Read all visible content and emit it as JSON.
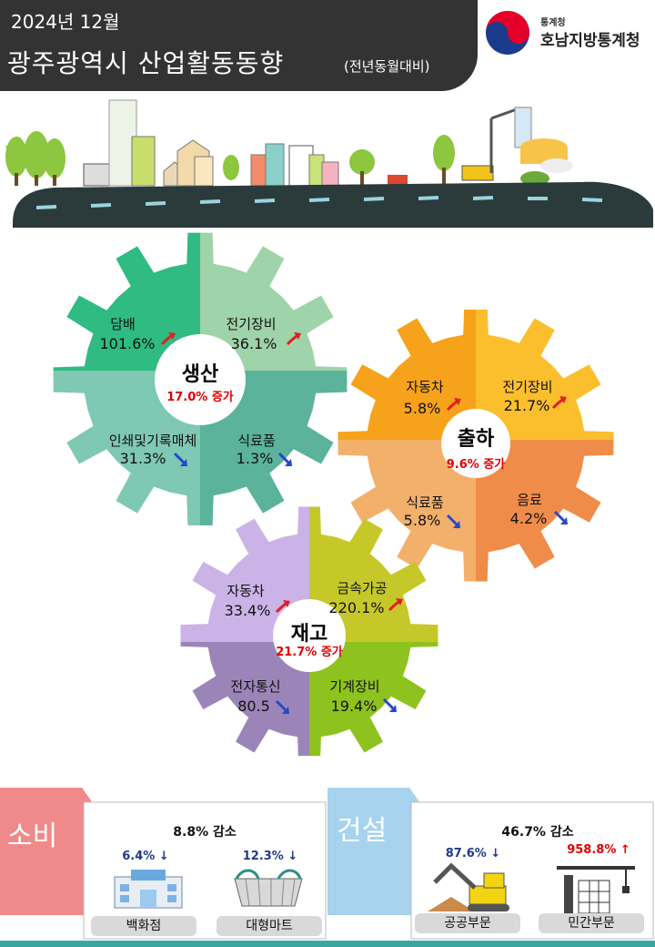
{
  "header": {
    "date": "2024년 12월",
    "title": "광주광역시 산업활동동향",
    "subtitle": "(전년동월대비)",
    "logo_small": "통계청",
    "logo_main": "호남지방통계청"
  },
  "production": {
    "title": "생산",
    "summary": "17.0% 증가",
    "items": [
      {
        "label": "담배",
        "value": "101.6%",
        "trend": "up"
      },
      {
        "label": "전기장비",
        "value": "36.1%",
        "trend": "up"
      },
      {
        "label": "인쇄및기록매체",
        "value": "31.3%",
        "trend": "down"
      },
      {
        "label": "식료품",
        "value": "1.3%",
        "trend": "down"
      }
    ]
  },
  "shipment": {
    "title": "출하",
    "summary": "9.6% 증가",
    "items": [
      {
        "label": "자동차",
        "value": "5.8%",
        "trend": "up"
      },
      {
        "label": "전기장비",
        "value": "21.7%",
        "trend": "up"
      },
      {
        "label": "식료품",
        "value": "5.8%",
        "trend": "down"
      },
      {
        "label": "음료",
        "value": "4.2%",
        "trend": "down"
      }
    ]
  },
  "inventory": {
    "title": "재고",
    "summary": "21.7% 증가",
    "items": [
      {
        "label": "자동차",
        "value": "33.4%",
        "trend": "up"
      },
      {
        "label": "금속가공",
        "value": "220.1%",
        "trend": "up"
      },
      {
        "label": "전자통신",
        "value": "80.5",
        "trend": "down"
      },
      {
        "label": "기계장비",
        "value": "19.4%",
        "trend": "down"
      }
    ]
  },
  "consumption": {
    "label": "소비",
    "summary": "8.8% 감소",
    "items": [
      {
        "label": "백화점",
        "value": "6.4% ↓"
      },
      {
        "label": "대형마트",
        "value": "12.3% ↓"
      }
    ]
  },
  "construction": {
    "label": "건설",
    "summary": "46.7% 감소",
    "items": [
      {
        "label": "공공부문",
        "value": "87.6% ↓"
      },
      {
        "label": "민간부문",
        "value": "958.8% ↑"
      }
    ]
  },
  "colors": {
    "header_bg": "#333333",
    "road": "#2b3a3a",
    "production": [
      "#2fbb82",
      "#9fd3a9",
      "#7fc8b3",
      "#5ab39a"
    ],
    "shipment": [
      "#f7a21b",
      "#fbbf2e",
      "#f3b06b",
      "#f08c4a"
    ],
    "inventory": [
      "#cbb3e8",
      "#c6c82a",
      "#9b85b8",
      "#8ec21e"
    ],
    "consumption": "#f08a8a",
    "construction": "#a8d3ee",
    "red": "#e00000",
    "blue": "#1f3a8a"
  },
  "icons": [
    "city-skyline-icon",
    "trend-up-arrow-icon",
    "trend-down-arrow-icon",
    "department-store-icon",
    "shopping-basket-icon",
    "excavator-icon",
    "crane-building-icon"
  ]
}
